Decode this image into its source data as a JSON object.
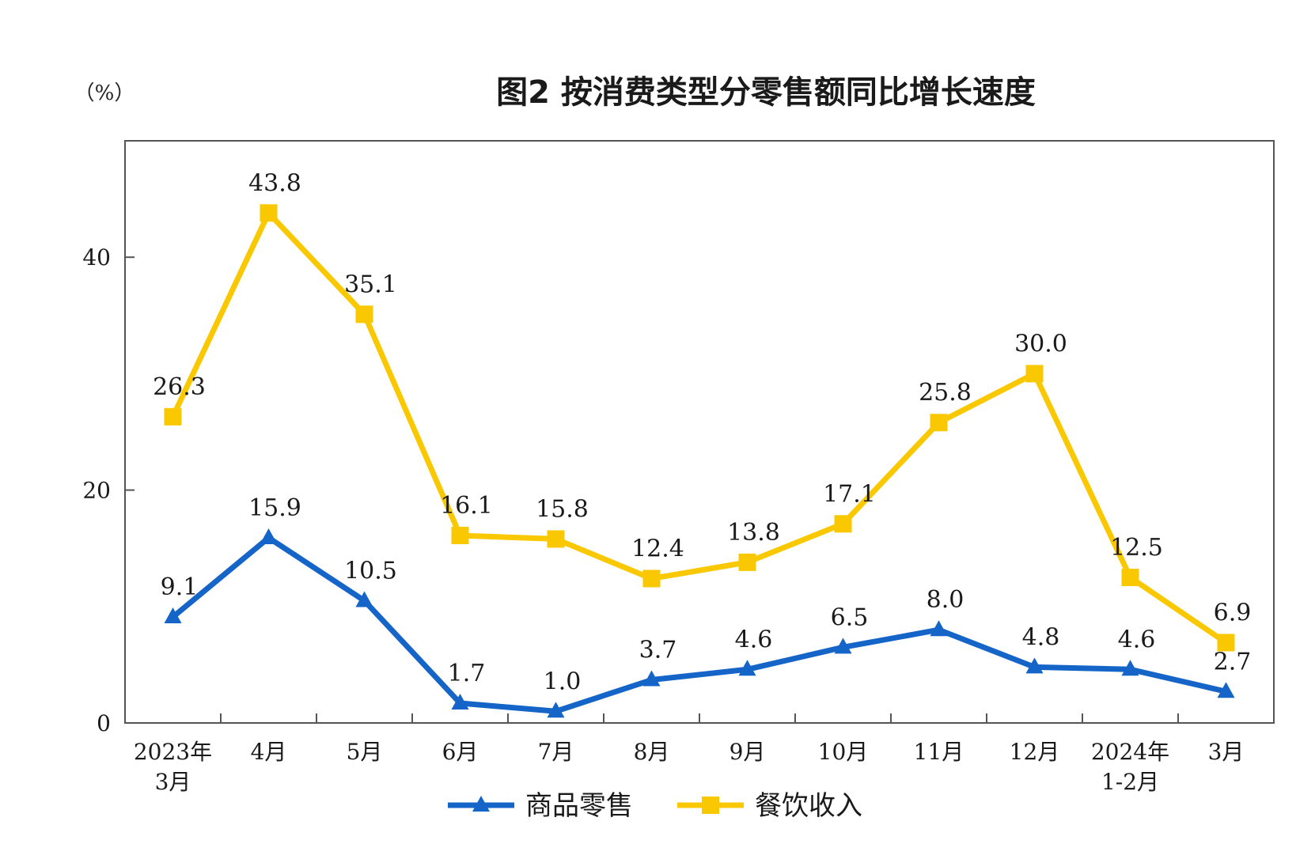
{
  "chart_data": {
    "type": "line",
    "title": "图2  按消费类型分零售额同比增长速度",
    "unit_label": "（%）",
    "categories": [
      [
        "2023年",
        "3月"
      ],
      [
        "4月"
      ],
      [
        "5月"
      ],
      [
        "6月"
      ],
      [
        "7月"
      ],
      [
        "8月"
      ],
      [
        "9月"
      ],
      [
        "10月"
      ],
      [
        "11月"
      ],
      [
        "12月"
      ],
      [
        "2024年",
        "1-2月"
      ],
      [
        "3月"
      ]
    ],
    "ylim": [
      0,
      50
    ],
    "yticks": [
      0,
      20,
      40
    ],
    "grid": false,
    "legend_position": "bottom-center",
    "series": [
      {
        "name": "商品零售",
        "color": "#1565C8",
        "marker": "triangle",
        "values": [
          9.1,
          15.9,
          10.5,
          1.7,
          1.0,
          3.7,
          4.6,
          6.5,
          8.0,
          4.8,
          4.6,
          2.7
        ],
        "labels": [
          "9.1",
          "15.9",
          "10.5",
          "1.7",
          "1.0",
          "3.7",
          "4.6",
          "6.5",
          "8.0",
          "4.8",
          "4.6",
          "2.7"
        ]
      },
      {
        "name": "餐饮收入",
        "color": "#FAC800",
        "marker": "square",
        "values": [
          26.3,
          43.8,
          35.1,
          16.1,
          15.8,
          12.4,
          13.8,
          17.1,
          25.8,
          30.0,
          12.5,
          6.9
        ],
        "labels": [
          "26.3",
          "43.8",
          "35.1",
          "16.1",
          "15.8",
          "12.4",
          "13.8",
          "17.1",
          "25.8",
          "30.0",
          "12.5",
          "6.9"
        ]
      }
    ]
  }
}
